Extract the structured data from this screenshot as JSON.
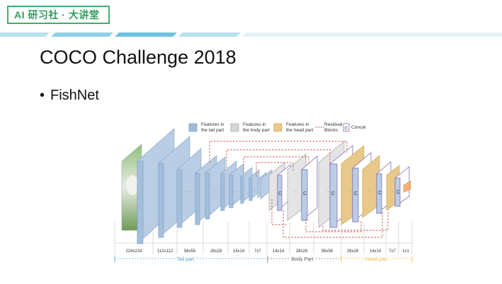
{
  "header": {
    "badge_text": "AI 研习社 · 大讲堂"
  },
  "slide": {
    "title": "COCO Challenge 2018",
    "bullet": "FishNet"
  },
  "diagram": {
    "legend": [
      {
        "label_lines": [
          "Features in",
          "the tail part"
        ],
        "color": "#9dbbd9"
      },
      {
        "label_lines": [
          "Features in",
          "the body part"
        ],
        "color": "#d6d6d6"
      },
      {
        "label_lines": [
          "Features in",
          "the head part"
        ],
        "color": "#e8c98a"
      },
      {
        "label_lines": [
          "Residual",
          "Blocks"
        ],
        "color": "#c0504d"
      },
      {
        "label_lines": [
          "Concat"
        ],
        "color": "#7e6bb8",
        "symbol": "C"
      }
    ],
    "resolutions": [
      "224x224",
      "112x112",
      "56x56",
      "28x28",
      "14x14",
      "7x7",
      "14x14",
      "28x28",
      "56x56",
      "28x28",
      "14x14",
      "7x7",
      "1x1"
    ],
    "parts": [
      {
        "label": "Tail part",
        "color": "#5b9bd5"
      },
      {
        "label": "Body Part",
        "color": "#777777"
      },
      {
        "label": "Head part",
        "color": "#f2b636"
      }
    ],
    "ellipsis": "...",
    "concat_symbol": "C"
  }
}
